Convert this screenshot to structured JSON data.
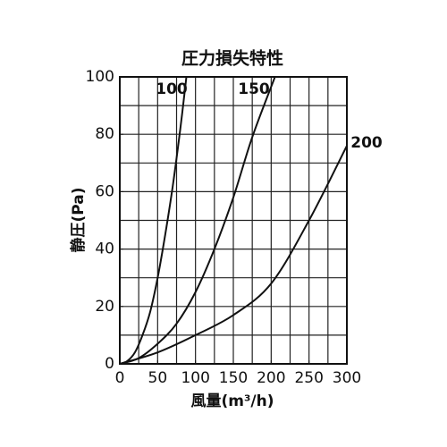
{
  "chart_data": {
    "type": "line",
    "title": "圧力損失特性",
    "x_label": "風量(m³/h)",
    "y_label": "静圧(Pa)",
    "xlim": [
      0,
      300
    ],
    "xticks": [
      0,
      50,
      100,
      150,
      200,
      250,
      300
    ],
    "ylim": [
      0,
      100
    ],
    "yticks": [
      0,
      20,
      40,
      60,
      80,
      100
    ],
    "xgrid": [
      25,
      50,
      75,
      100,
      125,
      150,
      175,
      200,
      225,
      250,
      275
    ],
    "ygrid": [
      10,
      20,
      30,
      40,
      50,
      60,
      70,
      80,
      90
    ],
    "grid": true,
    "series": [
      {
        "name": "100",
        "color": "#111111",
        "x": [
          0,
          10,
          20,
          30,
          40,
          50,
          60,
          70,
          80,
          88
        ],
        "values": [
          0,
          1,
          4,
          10,
          18,
          30,
          45,
          62,
          82,
          100
        ]
      },
      {
        "name": "150",
        "color": "#111111",
        "x": [
          0,
          25,
          50,
          75,
          100,
          125,
          150,
          175,
          205
        ],
        "values": [
          0,
          2,
          7,
          14,
          25,
          40,
          58,
          79,
          100
        ]
      },
      {
        "name": "200",
        "color": "#111111",
        "x": [
          0,
          50,
          100,
          150,
          200,
          250,
          300
        ],
        "values": [
          0,
          4,
          10,
          17,
          28,
          50,
          76
        ]
      }
    ]
  }
}
